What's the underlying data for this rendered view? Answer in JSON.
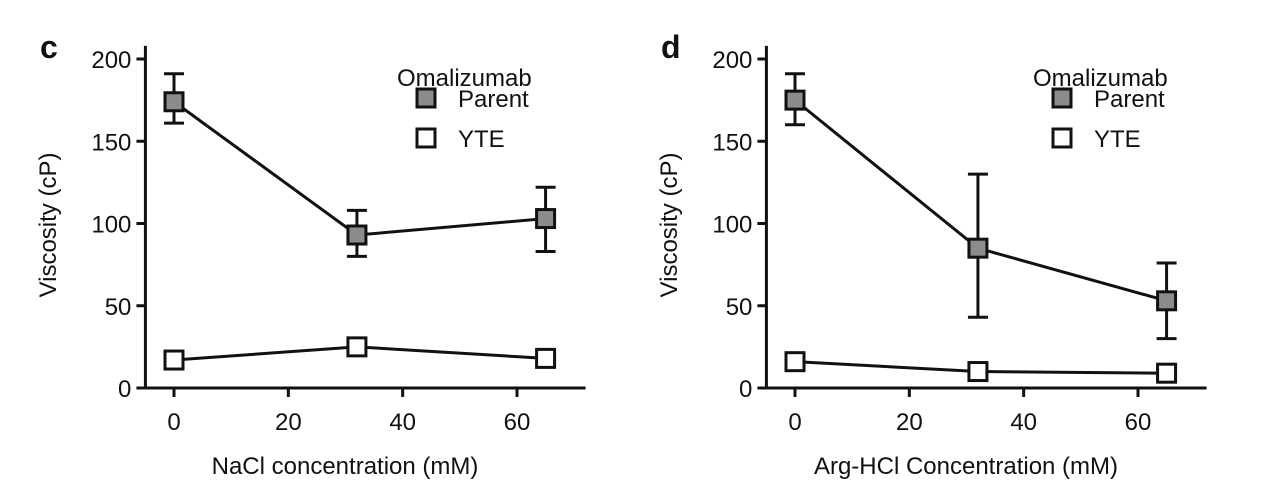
{
  "chart_data": [
    {
      "type": "line",
      "panel_label": "c",
      "xlabel": "NaCl concentration (mM)",
      "ylabel": "Viscosity (cP)",
      "xlim": [
        -5,
        72
      ],
      "ylim": [
        0,
        208
      ],
      "xticks": [
        0,
        20,
        40,
        60
      ],
      "yticks": [
        0,
        50,
        100,
        150,
        200
      ],
      "grid": false,
      "legend": {
        "title": "Omalizumab",
        "placement": "top-right"
      },
      "x": [
        0,
        32,
        65
      ],
      "series": [
        {
          "name": "Parent",
          "values": [
            174,
            93,
            103
          ],
          "err_low": [
            161,
            80,
            83
          ],
          "err_high": [
            191,
            108,
            122
          ],
          "marker": "filled-square",
          "color": "#8c8c8c"
        },
        {
          "name": "YTE",
          "values": [
            17,
            25,
            18
          ],
          "err_low": [
            14,
            22,
            15
          ],
          "err_high": [
            20,
            28,
            21
          ],
          "marker": "open-square",
          "color": "#ffffff"
        }
      ]
    },
    {
      "type": "line",
      "panel_label": "d",
      "xlabel": "Arg-HCl Concentration (mM)",
      "ylabel": "Viscosity (cP)",
      "xlim": [
        -5,
        72
      ],
      "ylim": [
        0,
        208
      ],
      "xticks": [
        0,
        20,
        40,
        60
      ],
      "yticks": [
        0,
        50,
        100,
        150,
        200
      ],
      "grid": false,
      "legend": {
        "title": "Omalizumab",
        "placement": "top-right"
      },
      "x": [
        0,
        32,
        65
      ],
      "series": [
        {
          "name": "Parent",
          "values": [
            175,
            85,
            53
          ],
          "err_low": [
            160,
            43,
            30
          ],
          "err_high": [
            191,
            130,
            76
          ],
          "marker": "filled-square",
          "color": "#8c8c8c"
        },
        {
          "name": "YTE",
          "values": [
            16,
            10,
            9
          ],
          "err_low": [
            13,
            8,
            7
          ],
          "err_high": [
            19,
            12,
            11
          ],
          "marker": "open-square",
          "color": "#ffffff"
        }
      ]
    }
  ]
}
